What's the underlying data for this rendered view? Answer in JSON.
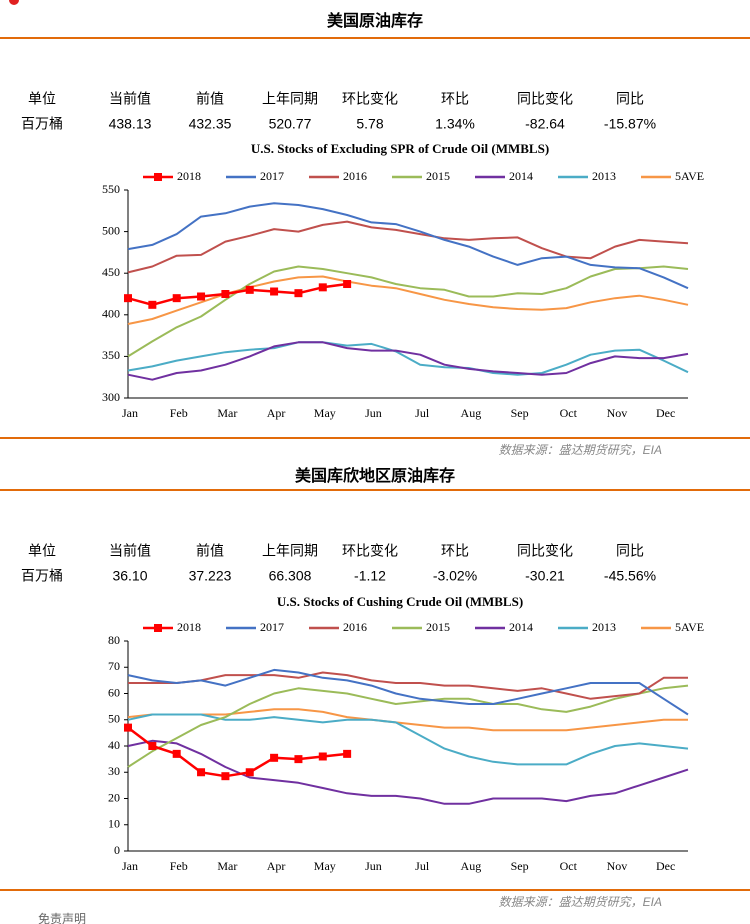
{
  "sections": [
    {
      "title": "美国原油库存",
      "table": {
        "header": [
          "单位",
          "当前值",
          "前值",
          "上年同期",
          "环比变化",
          "环比",
          "同比变化",
          "同比"
        ],
        "row": [
          "百万桶",
          "438.13",
          "432.35",
          "520.77",
          "5.78",
          "1.34%",
          "-82.64",
          "-15.87%"
        ]
      },
      "source": "数据来源：盛达期货研究，EIA"
    },
    {
      "title": "美国库欣地区原油库存",
      "table": {
        "header": [
          "单位",
          "当前值",
          "前值",
          "上年同期",
          "环比变化",
          "环比",
          "同比变化",
          "同比"
        ],
        "row": [
          "百万桶",
          "36.10",
          "37.223",
          "66.308",
          "-1.12",
          "-3.02%",
          "-30.21",
          "-45.56%"
        ]
      },
      "source": "数据来源：盛达期货研究，EIA"
    }
  ],
  "footer": "免责声明",
  "chart_data": [
    {
      "type": "line",
      "title": "U.S.  Stocks of Excluding SPR of Crude Oil (MMBLS)",
      "categories": [
        "Jan",
        null,
        "Feb",
        null,
        "Mar",
        null,
        "Apr",
        null,
        "May",
        null,
        "Jun",
        null,
        "Jul",
        null,
        "Aug",
        null,
        "Sep",
        null,
        "Oct",
        null,
        "Nov",
        null,
        "Dec",
        null
      ],
      "ylim": [
        300,
        550
      ],
      "yticks": [
        300,
        350,
        400,
        450,
        500,
        550
      ],
      "series": [
        {
          "name": "2018",
          "color": "#ff0000",
          "marker": "square",
          "values": [
            420,
            412,
            420,
            422,
            425,
            430,
            428,
            426,
            433,
            437,
            null,
            null,
            null,
            null,
            null,
            null,
            null,
            null,
            null,
            null,
            null,
            null,
            null,
            null
          ]
        },
        {
          "name": "2017",
          "color": "#4472c4",
          "values": [
            479,
            484,
            497,
            518,
            522,
            530,
            534,
            532,
            527,
            520,
            511,
            509,
            500,
            490,
            482,
            470,
            460,
            468,
            470,
            460,
            457,
            456,
            445,
            432
          ]
        },
        {
          "name": "2016",
          "color": "#c0504d",
          "values": [
            451,
            458,
            471,
            472,
            488,
            495,
            503,
            500,
            508,
            512,
            505,
            502,
            497,
            492,
            490,
            492,
            493,
            480,
            470,
            468,
            482,
            490,
            488,
            486
          ]
        },
        {
          "name": "2015",
          "color": "#9bbb59",
          "values": [
            350,
            368,
            385,
            398,
            418,
            437,
            452,
            458,
            455,
            450,
            445,
            437,
            432,
            430,
            422,
            422,
            426,
            425,
            432,
            446,
            455,
            456,
            458,
            455
          ]
        },
        {
          "name": "2014",
          "color": "#7030a0",
          "values": [
            328,
            322,
            330,
            333,
            340,
            350,
            362,
            367,
            367,
            360,
            357,
            357,
            352,
            340,
            335,
            332,
            330,
            328,
            330,
            342,
            350,
            348,
            348,
            353
          ]
        },
        {
          "name": "2013",
          "color": "#4bacc6",
          "values": [
            333,
            338,
            345,
            350,
            355,
            358,
            360,
            367,
            367,
            363,
            365,
            356,
            340,
            337,
            336,
            330,
            328,
            330,
            340,
            352,
            357,
            358,
            345,
            331
          ]
        },
        {
          "name": "5AVE",
          "color": "#f79646",
          "values": [
            389,
            395,
            405,
            415,
            425,
            433,
            440,
            445,
            446,
            440,
            435,
            432,
            425,
            418,
            413,
            409,
            407,
            406,
            408,
            415,
            420,
            423,
            418,
            412
          ]
        }
      ]
    },
    {
      "type": "line",
      "title": "U.S.  Stocks of Cushing  Crude Oil (MMBLS)",
      "categories": [
        "Jan",
        null,
        "Feb",
        null,
        "Mar",
        null,
        "Apr",
        null,
        "May",
        null,
        "Jun",
        null,
        "Jul",
        null,
        "Aug",
        null,
        "Sep",
        null,
        "Oct",
        null,
        "Nov",
        null,
        "Dec",
        null
      ],
      "ylim": [
        0,
        80
      ],
      "yticks": [
        0,
        10,
        20,
        30,
        40,
        50,
        60,
        70,
        80
      ],
      "series": [
        {
          "name": "2018",
          "color": "#ff0000",
          "marker": "square",
          "values": [
            47,
            40,
            37,
            30,
            28.5,
            30,
            35.5,
            35,
            36,
            37,
            null,
            null,
            null,
            null,
            null,
            null,
            null,
            null,
            null,
            null,
            null,
            null,
            null,
            null
          ]
        },
        {
          "name": "2017",
          "color": "#4472c4",
          "values": [
            67,
            65,
            64,
            65,
            63,
            66,
            69,
            68,
            66,
            65,
            63,
            60,
            58,
            57,
            56,
            56,
            58,
            60,
            62,
            64,
            64,
            64,
            58,
            52
          ]
        },
        {
          "name": "2016",
          "color": "#c0504d",
          "values": [
            64,
            64,
            64,
            65,
            67,
            67,
            67,
            66,
            68,
            67,
            65,
            64,
            64,
            63,
            63,
            62,
            61,
            62,
            60,
            58,
            59,
            60,
            66,
            66
          ]
        },
        {
          "name": "2015",
          "color": "#9bbb59",
          "values": [
            32,
            38,
            43,
            48,
            51,
            56,
            60,
            62,
            61,
            60,
            58,
            56,
            57,
            58,
            58,
            56,
            56,
            54,
            53,
            55,
            58,
            60,
            62,
            63
          ]
        },
        {
          "name": "2014",
          "color": "#7030a0",
          "values": [
            40,
            42,
            41,
            37,
            32,
            28,
            27,
            26,
            24,
            22,
            21,
            21,
            20,
            18,
            18,
            20,
            20,
            20,
            19,
            21,
            22,
            25,
            28,
            31
          ]
        },
        {
          "name": "2013",
          "color": "#4bacc6",
          "values": [
            50,
            52,
            52,
            52,
            50,
            50,
            51,
            50,
            49,
            50,
            50,
            49,
            44,
            39,
            36,
            34,
            33,
            33,
            33,
            37,
            40,
            41,
            40,
            39
          ]
        },
        {
          "name": "5AVE",
          "color": "#f79646",
          "values": [
            51,
            52,
            52,
            52,
            52,
            53,
            54,
            54,
            53,
            51,
            50,
            49,
            48,
            47,
            47,
            46,
            46,
            46,
            46,
            47,
            48,
            49,
            50,
            50
          ]
        }
      ]
    }
  ]
}
